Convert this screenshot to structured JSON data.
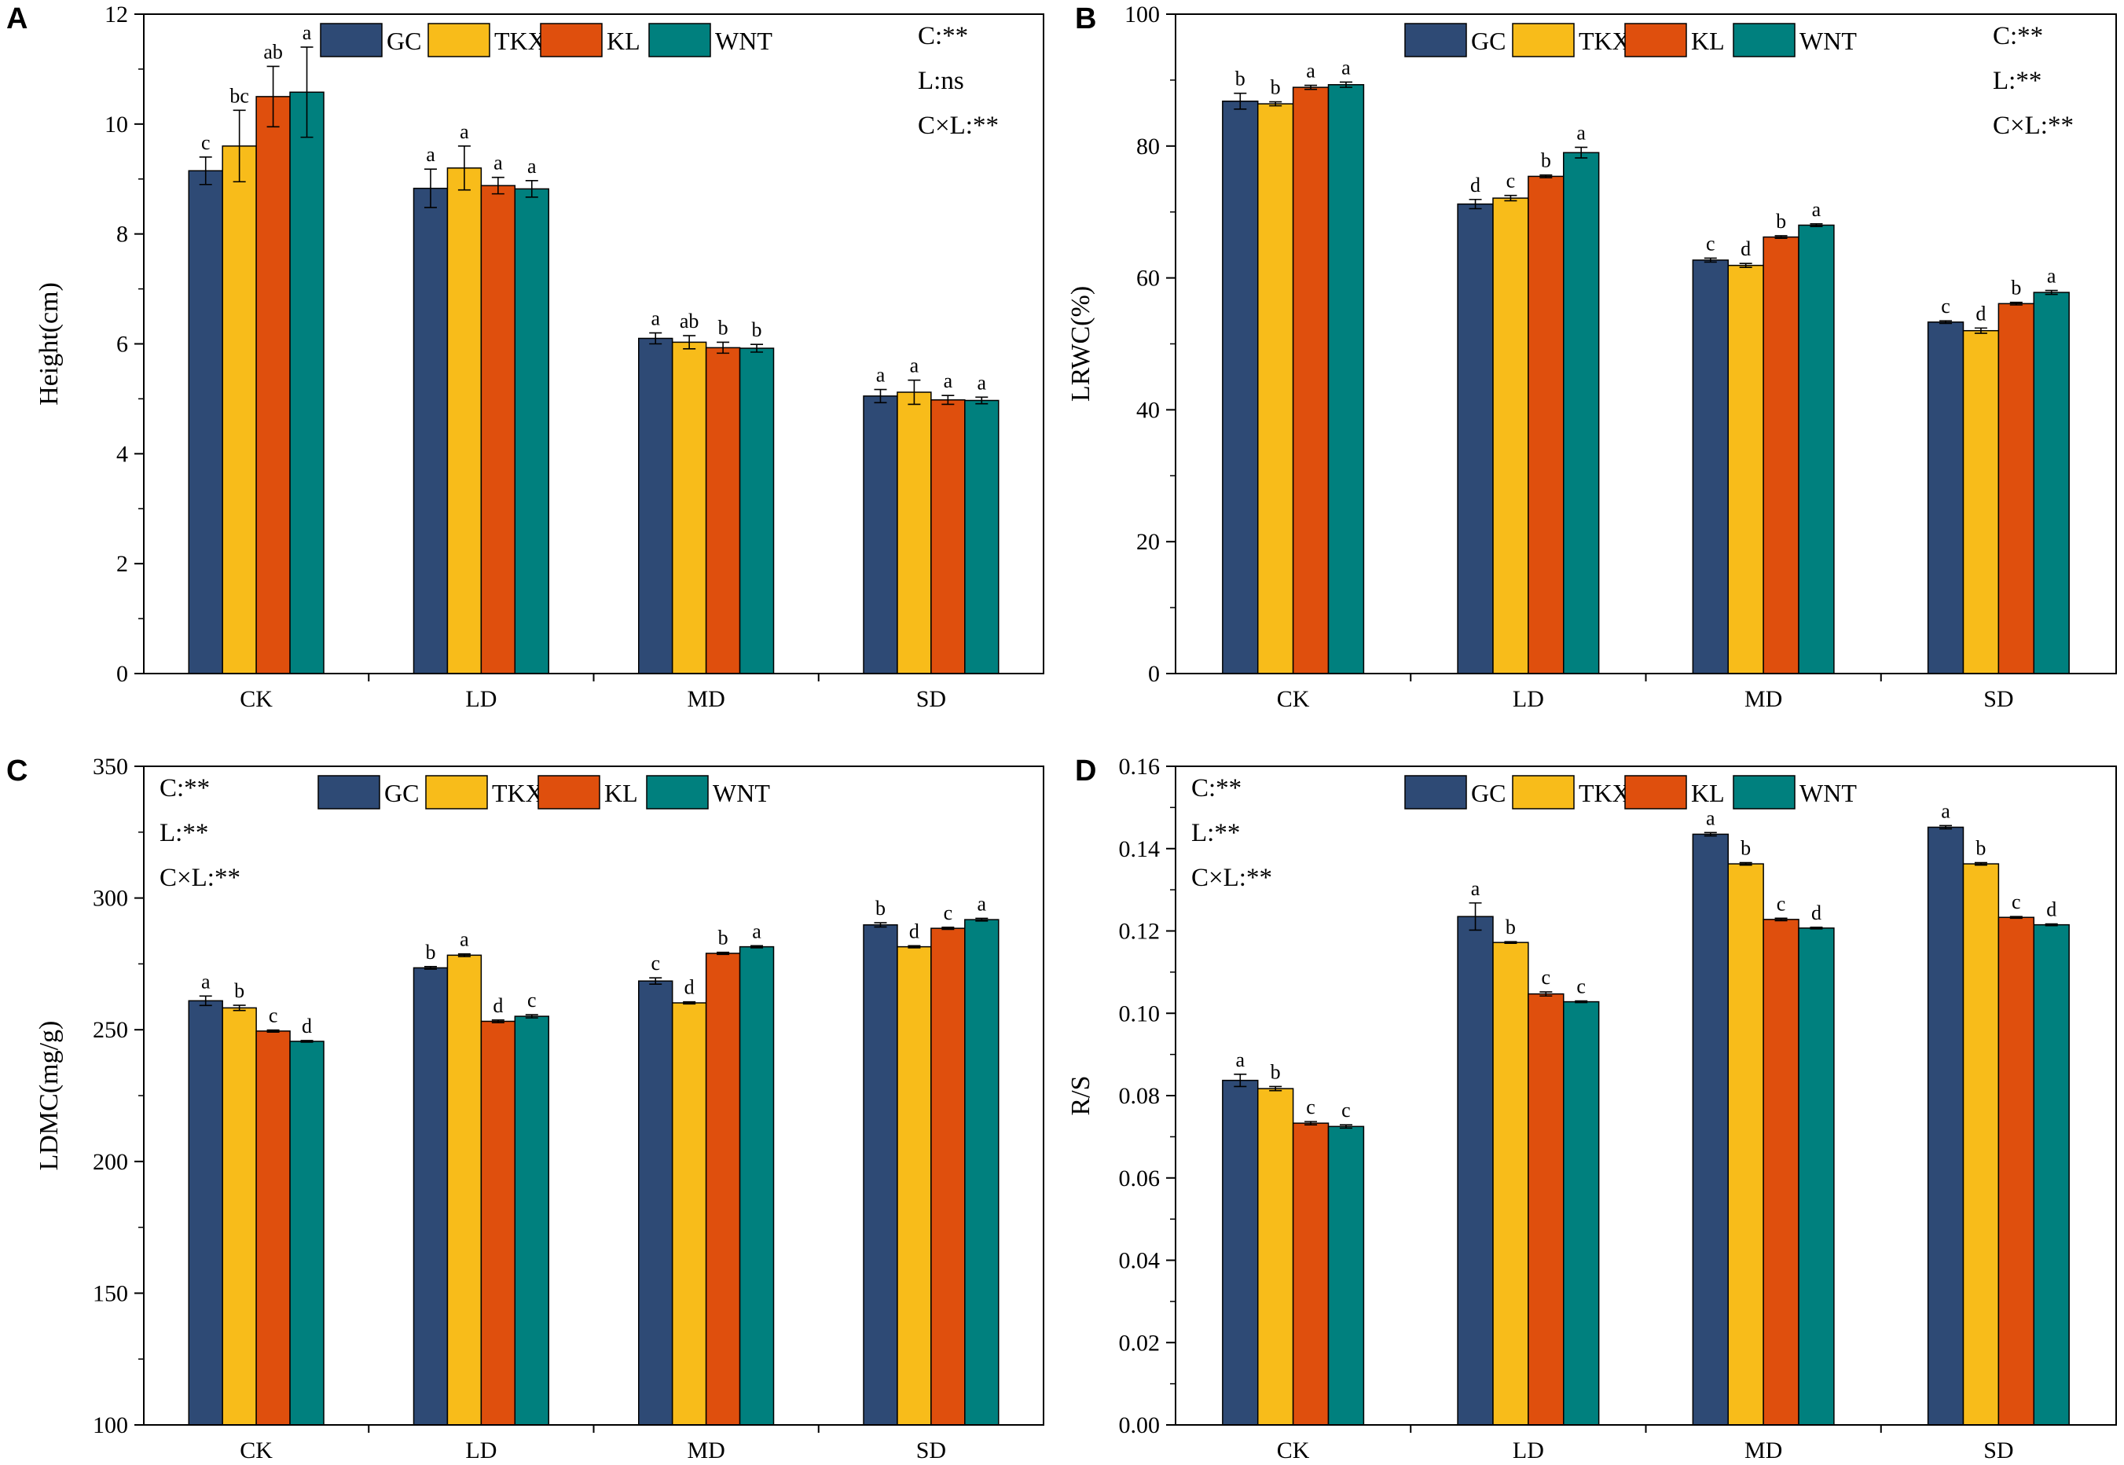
{
  "colors": {
    "GC": "#2E4A75",
    "TKX": "#F8BC1A",
    "KL": "#DF4F0D",
    "WNT": "#00807E",
    "axis": "#000000"
  },
  "chart_data": [
    {
      "panel": "A",
      "type": "bar",
      "ylabel": "Height(cm)",
      "xlabel": "",
      "ylim": [
        0,
        12
      ],
      "yticks": [
        "0",
        "2",
        "4",
        "6",
        "8",
        "10",
        "12"
      ],
      "ytick_values": [
        0,
        2,
        4,
        6,
        8,
        10,
        12
      ],
      "categories": [
        "CK",
        "LD",
        "MD",
        "SD"
      ],
      "legend": [
        "GC",
        "TKX",
        "KL",
        "WNT"
      ],
      "stats": [
        "C:**",
        "L:ns",
        "C×L:**"
      ],
      "series": [
        {
          "name": "GC",
          "values": [
            9.15,
            8.83,
            6.1,
            5.05
          ],
          "errors": [
            0.25,
            0.35,
            0.1,
            0.12
          ],
          "letters": [
            "c",
            "a",
            "a",
            "a"
          ]
        },
        {
          "name": "TKX",
          "values": [
            9.6,
            9.2,
            6.03,
            5.12
          ],
          "errors": [
            0.65,
            0.4,
            0.12,
            0.22
          ],
          "letters": [
            "bc",
            "a",
            "ab",
            "a"
          ]
        },
        {
          "name": "KL",
          "values": [
            10.5,
            8.88,
            5.93,
            4.98
          ],
          "errors": [
            0.55,
            0.15,
            0.1,
            0.08
          ],
          "letters": [
            "ab",
            "a",
            "b",
            "a"
          ]
        },
        {
          "name": "WNT",
          "values": [
            10.58,
            8.82,
            5.92,
            4.97
          ],
          "errors": [
            0.82,
            0.15,
            0.07,
            0.06
          ],
          "letters": [
            "a",
            "a",
            "b",
            "a"
          ]
        }
      ]
    },
    {
      "panel": "B",
      "type": "bar",
      "ylabel": "LRWC(%)",
      "xlabel": "",
      "ylim": [
        0,
        100
      ],
      "yticks": [
        "0",
        "20",
        "40",
        "60",
        "80",
        "100"
      ],
      "ytick_values": [
        0,
        20,
        40,
        60,
        80,
        100
      ],
      "categories": [
        "CK",
        "LD",
        "MD",
        "SD"
      ],
      "legend": [
        "GC",
        "TKX",
        "KL",
        "WNT"
      ],
      "stats": [
        "C:**",
        "L:**",
        "C×L:**"
      ],
      "series": [
        {
          "name": "GC",
          "values": [
            86.8,
            71.2,
            62.7,
            53.3
          ],
          "errors": [
            1.2,
            0.7,
            0.3,
            0.2
          ],
          "letters": [
            "b",
            "d",
            "c",
            "c"
          ]
        },
        {
          "name": "TKX",
          "values": [
            86.4,
            72.1,
            61.9,
            52.0
          ],
          "errors": [
            0.3,
            0.4,
            0.3,
            0.4
          ],
          "letters": [
            "b",
            "c",
            "d",
            "d"
          ]
        },
        {
          "name": "KL",
          "values": [
            88.9,
            75.4,
            66.2,
            56.1
          ],
          "errors": [
            0.3,
            0.2,
            0.2,
            0.2
          ],
          "letters": [
            "a",
            "b",
            "b",
            "b"
          ]
        },
        {
          "name": "WNT",
          "values": [
            89.3,
            79.0,
            68.0,
            57.8
          ],
          "errors": [
            0.4,
            0.8,
            0.2,
            0.3
          ],
          "letters": [
            "a",
            "a",
            "a",
            "a"
          ]
        }
      ]
    },
    {
      "panel": "C",
      "type": "bar",
      "ylabel": "LDMC(mg/g)",
      "xlabel": "",
      "ylim": [
        100,
        350
      ],
      "yticks": [
        "100",
        "150",
        "200",
        "250",
        "300",
        "350"
      ],
      "ytick_values": [
        100,
        150,
        200,
        250,
        300,
        350
      ],
      "categories": [
        "CK",
        "LD",
        "MD",
        "SD"
      ],
      "legend": [
        "GC",
        "TKX",
        "KL",
        "WNT"
      ],
      "stats": [
        "C:**",
        "L:**",
        "C×L:**"
      ],
      "series": [
        {
          "name": "GC",
          "values": [
            261,
            273.5,
            268.5,
            289.8
          ],
          "errors": [
            1.8,
            0.5,
            1.2,
            0.8
          ],
          "letters": [
            "a",
            "b",
            "c",
            "b"
          ]
        },
        {
          "name": "TKX",
          "values": [
            258.3,
            278.3,
            260.2,
            281.5
          ],
          "errors": [
            1.0,
            0.5,
            0.4,
            0.4
          ],
          "letters": [
            "b",
            "a",
            "d",
            "d"
          ]
        },
        {
          "name": "KL",
          "values": [
            249.5,
            253.2,
            279,
            288.5
          ],
          "errors": [
            0.4,
            0.5,
            0.4,
            0.4
          ],
          "letters": [
            "c",
            "d",
            "b",
            "c"
          ]
        },
        {
          "name": "WNT",
          "values": [
            245.6,
            255.1,
            281.5,
            291.8
          ],
          "errors": [
            0.3,
            0.6,
            0.4,
            0.5
          ],
          "letters": [
            "d",
            "c",
            "a",
            "a"
          ]
        }
      ]
    },
    {
      "panel": "D",
      "type": "bar",
      "ylabel": "R/S",
      "xlabel": "",
      "ylim": [
        0,
        0.16
      ],
      "yticks": [
        "0.00",
        "0.02",
        "0.04",
        "0.06",
        "0.08",
        "0.10",
        "0.12",
        "0.14",
        "0.16"
      ],
      "ytick_values": [
        0,
        0.02,
        0.04,
        0.06,
        0.08,
        0.1,
        0.12,
        0.14,
        0.16
      ],
      "categories": [
        "CK",
        "LD",
        "MD",
        "SD"
      ],
      "legend": [
        "GC",
        "TKX",
        "KL",
        "WNT"
      ],
      "stats": [
        "C:**",
        "L:**",
        "C×L:**"
      ],
      "series": [
        {
          "name": "GC",
          "values": [
            0.0837,
            0.1235,
            0.1435,
            0.1452
          ],
          "errors": [
            0.0015,
            0.0033,
            0.0004,
            0.0004
          ],
          "letters": [
            "a",
            "a",
            "a",
            "a"
          ]
        },
        {
          "name": "TKX",
          "values": [
            0.0817,
            0.1172,
            0.1363,
            0.1363
          ],
          "errors": [
            0.0005,
            0.0002,
            0.0003,
            0.0003
          ],
          "letters": [
            "b",
            "b",
            "b",
            "b"
          ]
        },
        {
          "name": "KL",
          "values": [
            0.0733,
            0.1047,
            0.1228,
            0.1233
          ],
          "errors": [
            0.0004,
            0.0005,
            0.0003,
            0.0002
          ],
          "letters": [
            "c",
            "c",
            "c",
            "c"
          ]
        },
        {
          "name": "WNT",
          "values": [
            0.0725,
            0.1028,
            0.1207,
            0.1215
          ],
          "errors": [
            0.0004,
            0.0002,
            0.0002,
            0.0002
          ],
          "letters": [
            "c",
            "c",
            "d",
            "d"
          ]
        }
      ]
    }
  ]
}
